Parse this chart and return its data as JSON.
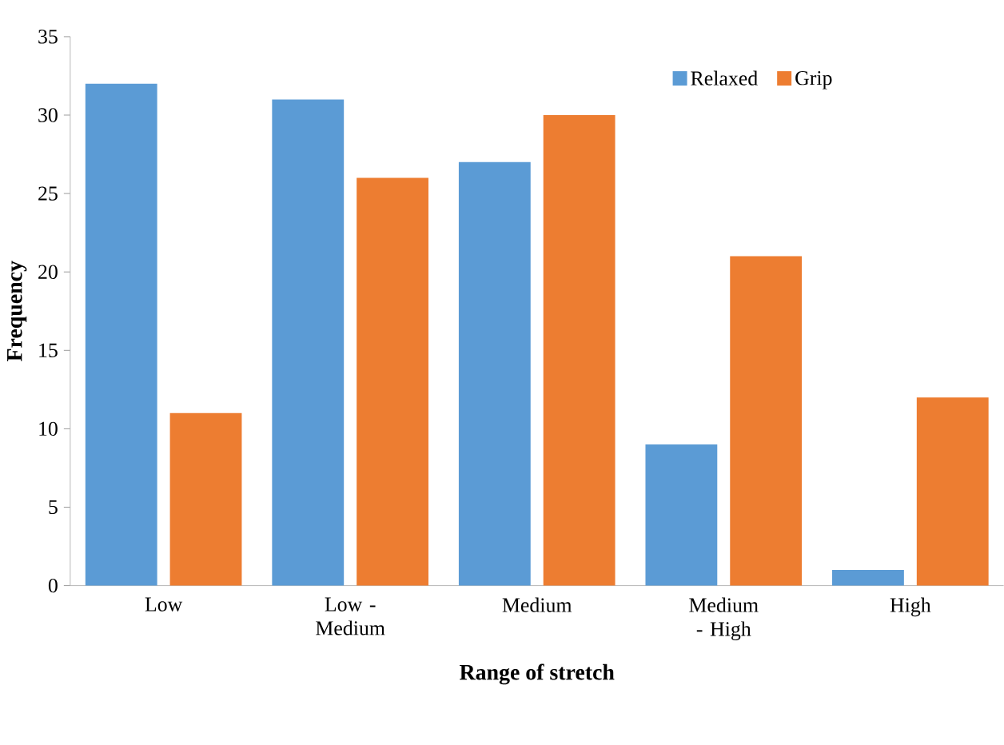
{
  "chart_data": {
    "type": "bar",
    "xlabel": "Range of stretch",
    "ylabel": "Frequency",
    "categories": [
      "Low",
      "Low - Medium",
      "Medium",
      "Medium - High",
      "High"
    ],
    "series": [
      {
        "name": "Relaxed",
        "color": "#5b9bd5",
        "values": [
          32,
          31,
          27,
          9,
          1
        ]
      },
      {
        "name": "Grip",
        "color": "#ed7d31",
        "values": [
          11,
          26,
          30,
          21,
          12
        ]
      }
    ],
    "ylim": [
      0,
      35
    ],
    "yticks": [
      0,
      5,
      10,
      15,
      20,
      25,
      30,
      35
    ],
    "legend": "top right"
  }
}
